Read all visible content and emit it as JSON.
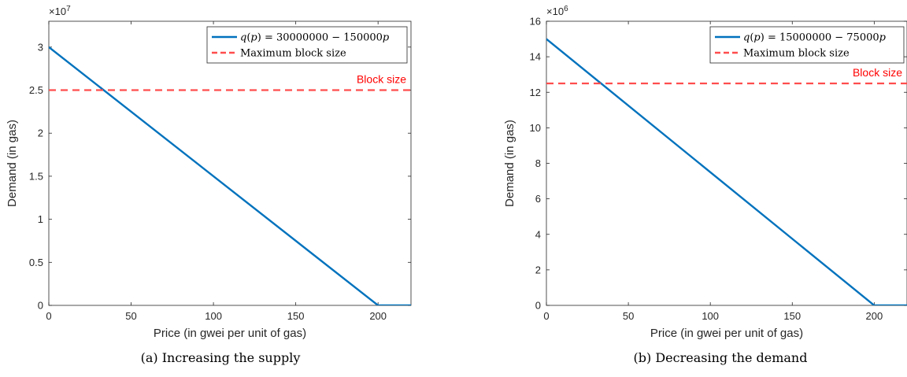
{
  "chart_data": [
    {
      "type": "line",
      "caption": "(a) Increasing the supply",
      "xlabel": "Price (in gwei per unit of gas)",
      "ylabel": "Demand (in gas)",
      "xlim": [
        0,
        220
      ],
      "ylim": [
        0,
        33000000
      ],
      "exponent_label": "×10",
      "exponent_power": "7",
      "ytick_scale": 10000000,
      "xticks": [
        0,
        50,
        100,
        150,
        200
      ],
      "xtick_labels": [
        "0",
        "50",
        "100",
        "150",
        "200"
      ],
      "yticks": [
        0,
        5000000,
        10000000,
        15000000,
        20000000,
        25000000,
        30000000
      ],
      "ytick_labels": [
        "0",
        "0.5",
        "1",
        "1.5",
        "2",
        "2.5",
        "3"
      ],
      "series": [
        {
          "name": "q(p) = 30000000 − 150000p",
          "color": "#0072BD",
          "style": "solid",
          "x": [
            0,
            200,
            220
          ],
          "y": [
            30000000,
            0,
            0
          ]
        },
        {
          "name": "Maximum block size",
          "color": "#FF4D4D",
          "style": "dashed",
          "x": [
            0,
            220
          ],
          "y": [
            25000000,
            25000000
          ]
        }
      ],
      "annotation": {
        "text": "Block size",
        "x": 220,
        "y": 25000000,
        "color": "#FF0000"
      },
      "legend_position": "top-right"
    },
    {
      "type": "line",
      "caption": "(b) Decreasing the demand",
      "xlabel": "Price (in gwei per unit of gas)",
      "ylabel": "Demand (in gas)",
      "xlim": [
        0,
        220
      ],
      "ylim": [
        0,
        16000000
      ],
      "exponent_label": "×10",
      "exponent_power": "6",
      "ytick_scale": 1000000,
      "xticks": [
        0,
        50,
        100,
        150,
        200
      ],
      "xtick_labels": [
        "0",
        "50",
        "100",
        "150",
        "200"
      ],
      "yticks": [
        0,
        2000000,
        4000000,
        6000000,
        8000000,
        10000000,
        12000000,
        14000000,
        16000000
      ],
      "ytick_labels": [
        "0",
        "2",
        "4",
        "6",
        "8",
        "10",
        "12",
        "14",
        "16"
      ],
      "series": [
        {
          "name": "q(p) = 15000000 − 75000p",
          "color": "#0072BD",
          "style": "solid",
          "x": [
            0,
            200,
            220
          ],
          "y": [
            15000000,
            0,
            0
          ]
        },
        {
          "name": "Maximum block size",
          "color": "#FF4D4D",
          "style": "dashed",
          "x": [
            0,
            220
          ],
          "y": [
            12500000,
            12500000
          ]
        }
      ],
      "annotation": {
        "text": "Block size",
        "x": 220,
        "y": 12500000,
        "color": "#FF0000"
      },
      "legend_position": "top-right"
    }
  ]
}
